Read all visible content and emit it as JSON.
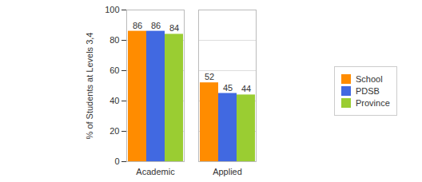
{
  "chart_data": {
    "type": "bar",
    "categories": [
      "Academic",
      "Applied"
    ],
    "series": [
      {
        "name": "School",
        "color": "#ff8c00",
        "values": [
          86,
          52
        ]
      },
      {
        "name": "PDSB",
        "color": "#4169e1",
        "values": [
          86,
          45
        ]
      },
      {
        "name": "Province",
        "color": "#9acd32",
        "values": [
          84,
          44
        ]
      }
    ],
    "y_label": "% of Students at Levels 3,4",
    "ylim": [
      0,
      100
    ],
    "yticks": [
      0,
      20,
      40,
      60,
      80,
      100
    ],
    "grid": true,
    "data_labels": true,
    "legend": "right"
  }
}
